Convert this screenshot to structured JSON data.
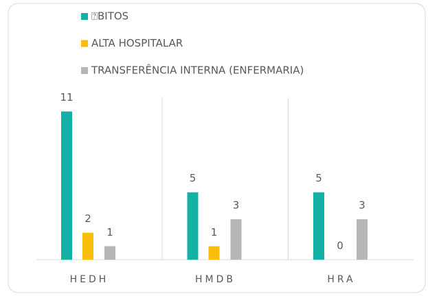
{
  "chart_data": {
    "type": "bar",
    "categories": [
      "HEDH",
      "HMDB",
      "HRA"
    ],
    "series": [
      {
        "name": "⍰BITOS",
        "color": "#14b1a6",
        "values": [
          11,
          5,
          5
        ]
      },
      {
        "name": "ALTA HOSPITALAR",
        "color": "#fbbd0c",
        "values": [
          2,
          1,
          0
        ]
      },
      {
        "name": "TRANSFERÊNCIA INTERNA (ENFERMARIA)",
        "color": "#b7b7b7",
        "values": [
          1,
          3,
          3
        ]
      }
    ],
    "ylim": [
      0,
      12
    ]
  }
}
